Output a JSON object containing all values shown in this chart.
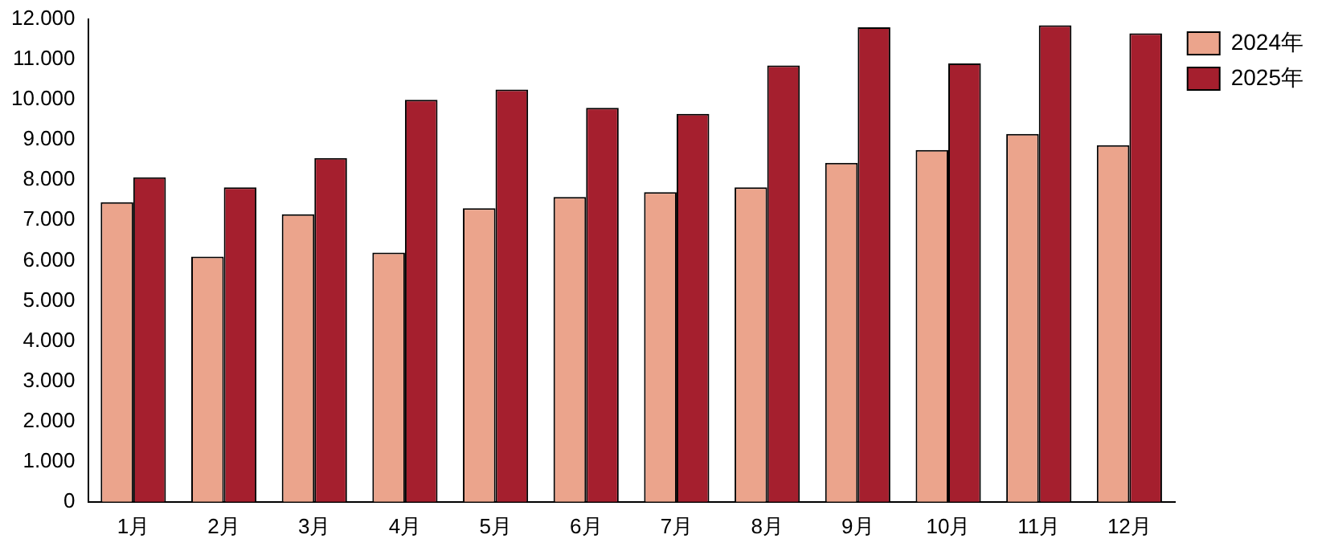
{
  "chart_data": {
    "type": "bar",
    "categories": [
      "1月",
      "2月",
      "3月",
      "4月",
      "5月",
      "6月",
      "7月",
      "8月",
      "9月",
      "10月",
      "11月",
      "12月"
    ],
    "series": [
      {
        "name": "2024年",
        "color": "#eba48c",
        "values": [
          7450,
          6100,
          7150,
          6200,
          7300,
          7580,
          7700,
          7820,
          8430,
          8750,
          9150,
          8870
        ]
      },
      {
        "name": "2025年",
        "color": "#a51f2e",
        "values": [
          8070,
          7820,
          8550,
          10000,
          10250,
          9800,
          9650,
          10850,
          11800,
          10900,
          11850,
          11650
        ]
      }
    ],
    "ylim": [
      0,
      12000
    ],
    "yticks": [
      0,
      {
        "value": 1000,
        "label": "1.000"
      },
      {
        "value": 2000,
        "label": "2.000"
      },
      {
        "value": 3000,
        "label": "3.000"
      },
      {
        "value": 4000,
        "label": "4.000"
      },
      {
        "value": 5000,
        "label": "5.000"
      },
      {
        "value": 6000,
        "label": "6.000"
      },
      {
        "value": 7000,
        "label": "7.000"
      },
      {
        "value": 8000,
        "label": "8.000"
      },
      {
        "value": 9000,
        "label": "9.000"
      },
      {
        "value": 10000,
        "label": "10.000"
      },
      {
        "value": 11000,
        "label": "11.000"
      },
      {
        "value": 12000,
        "label": "12.000"
      }
    ],
    "grid": false,
    "legend": "top right"
  }
}
